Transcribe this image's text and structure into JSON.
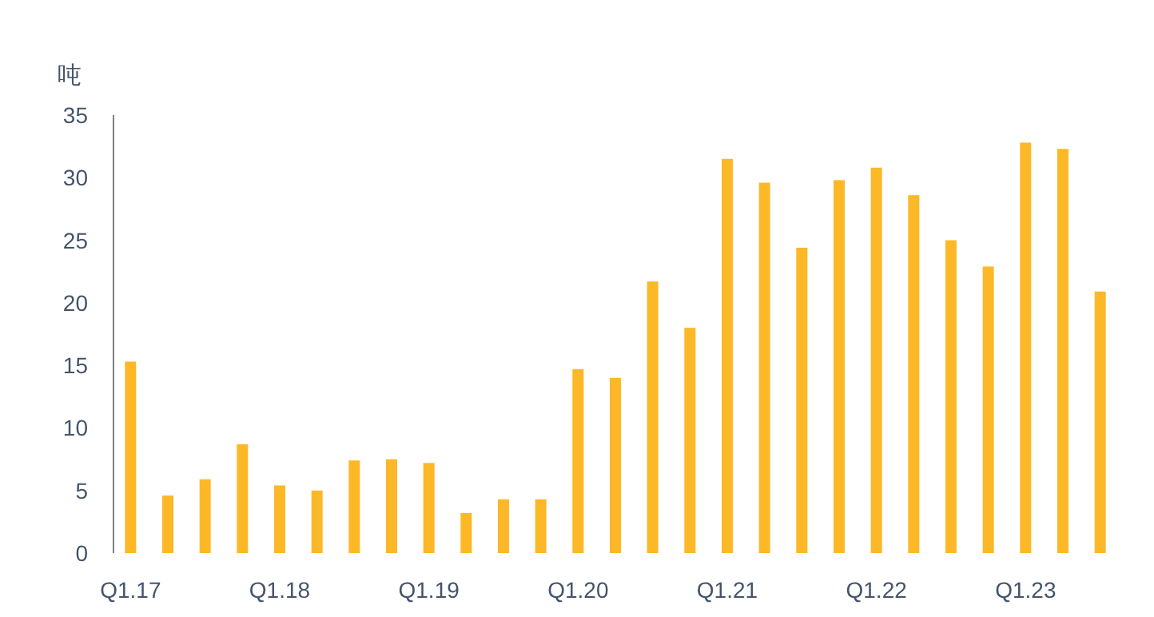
{
  "chart_data": {
    "type": "bar",
    "ylabel": "吨",
    "categories": [
      "Q1.17",
      null,
      null,
      null,
      "Q1.18",
      null,
      null,
      null,
      "Q1.19",
      null,
      null,
      null,
      "Q1.20",
      null,
      null,
      null,
      "Q1.21",
      null,
      null,
      null,
      "Q1.22",
      null,
      null,
      null,
      "Q1.23",
      null,
      null
    ],
    "values": [
      15.3,
      4.6,
      5.9,
      8.7,
      5.4,
      5.0,
      7.4,
      7.5,
      7.2,
      3.2,
      4.3,
      4.3,
      14.7,
      14.0,
      21.7,
      18.0,
      31.5,
      29.6,
      24.4,
      29.8,
      30.8,
      28.6,
      25.0,
      22.9,
      32.8,
      32.3,
      20.9
    ],
    "color": "#fdb827",
    "ylim": [
      0,
      35
    ],
    "yticks": [
      0,
      5,
      10,
      15,
      20,
      25,
      30,
      35
    ]
  }
}
